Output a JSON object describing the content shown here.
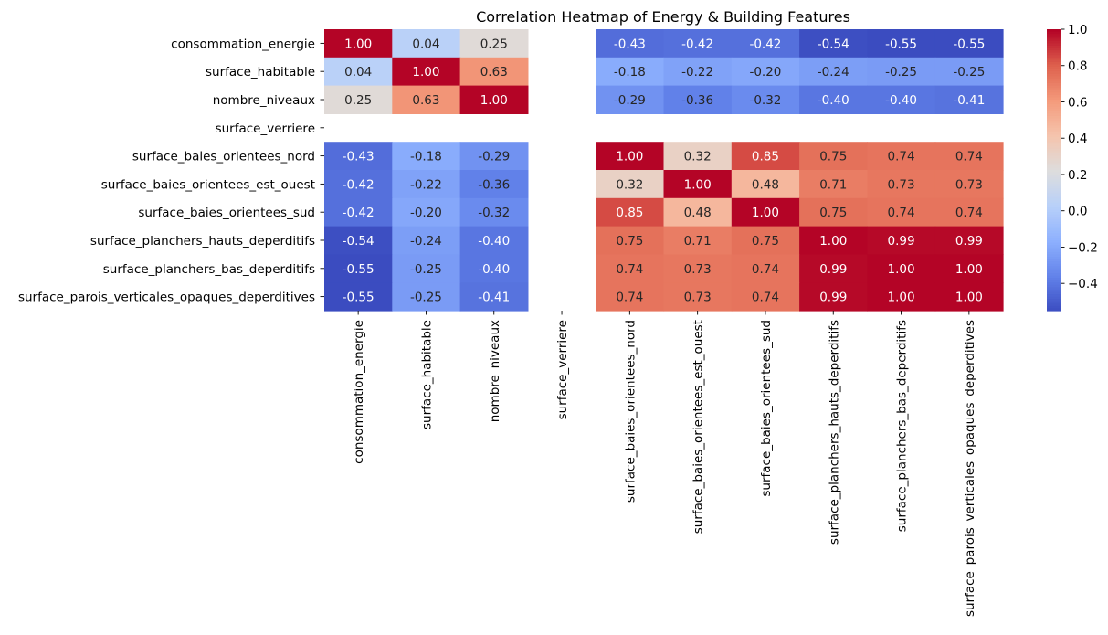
{
  "chart_data": {
    "type": "heatmap",
    "title": "Correlation Heatmap of Energy & Building Features",
    "rows": [
      "consommation_energie",
      "surface_habitable",
      "nombre_niveaux",
      "surface_verriere",
      "surface_baies_orientees_nord",
      "surface_baies_orientees_est_ouest",
      "surface_baies_orientees_sud",
      "surface_planchers_hauts_deperditifs",
      "surface_planchers_bas_deperditifs",
      "surface_parois_verticales_opaques_deperditives"
    ],
    "columns": [
      "consommation_energie",
      "surface_habitable",
      "nombre_niveaux",
      "surface_verriere",
      "surface_baies_orientees_nord",
      "surface_baies_orientees_est_ouest",
      "surface_baies_orientees_sud",
      "surface_planchers_hauts_deperditifs",
      "surface_planchers_bas_deperditifs",
      "surface_parois_verticales_opaques_deperditives"
    ],
    "values": [
      [
        1.0,
        0.04,
        0.25,
        null,
        -0.43,
        -0.42,
        -0.42,
        -0.54,
        -0.55,
        -0.55
      ],
      [
        0.04,
        1.0,
        0.63,
        null,
        -0.18,
        -0.22,
        -0.2,
        -0.24,
        -0.25,
        -0.25
      ],
      [
        0.25,
        0.63,
        1.0,
        null,
        -0.29,
        -0.36,
        -0.32,
        -0.4,
        -0.4,
        -0.41
      ],
      [
        null,
        null,
        null,
        null,
        null,
        null,
        null,
        null,
        null,
        null
      ],
      [
        -0.43,
        -0.18,
        -0.29,
        null,
        1.0,
        0.32,
        0.85,
        0.75,
        0.74,
        0.74
      ],
      [
        -0.42,
        -0.22,
        -0.36,
        null,
        0.32,
        1.0,
        0.48,
        0.71,
        0.73,
        0.73
      ],
      [
        -0.42,
        -0.2,
        -0.32,
        null,
        0.85,
        0.48,
        1.0,
        0.75,
        0.74,
        0.74
      ],
      [
        -0.54,
        -0.24,
        -0.4,
        null,
        0.75,
        0.71,
        0.75,
        1.0,
        0.99,
        0.99
      ],
      [
        -0.55,
        -0.25,
        -0.4,
        null,
        0.74,
        0.73,
        0.74,
        0.99,
        1.0,
        1.0
      ],
      [
        -0.55,
        -0.25,
        -0.41,
        null,
        0.74,
        0.73,
        0.74,
        0.99,
        1.0,
        1.0
      ]
    ],
    "colormap": "coolwarm",
    "colorbar": {
      "range": [
        -0.55,
        1.0
      ],
      "ticks": [
        1.0,
        0.8,
        0.6,
        0.4,
        0.2,
        0.0,
        -0.2,
        -0.4
      ],
      "tick_labels": [
        "1.0",
        "0.8",
        "0.6",
        "0.4",
        "0.2",
        "0.0",
        "−0.2",
        "−0.4"
      ]
    },
    "xlabel": "",
    "ylabel": ""
  }
}
